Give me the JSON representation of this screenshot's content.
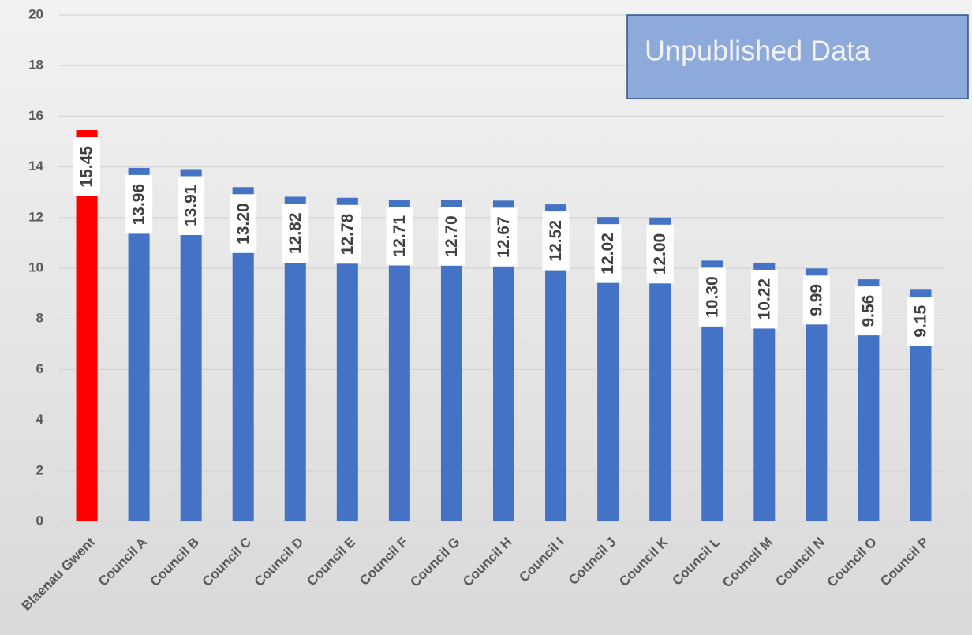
{
  "chart_data": {
    "type": "bar",
    "categories": [
      "Blaenau Gwent",
      "Council A",
      "Council B",
      "Council C",
      "Council D",
      "Council E",
      "Council F",
      "Council G",
      "Council H",
      "Council I",
      "Council J",
      "Council K",
      "Council L",
      "Council M",
      "Council N",
      "Council O",
      "Council P"
    ],
    "values": [
      15.45,
      13.96,
      13.91,
      13.2,
      12.82,
      12.78,
      12.71,
      12.7,
      12.67,
      12.52,
      12.02,
      12.0,
      10.3,
      10.22,
      9.99,
      9.56,
      9.15
    ],
    "value_labels": [
      "15.45",
      "13.96",
      "13.91",
      "13.20",
      "12.82",
      "12.78",
      "12.71",
      "12.70",
      "12.67",
      "12.52",
      "12.02",
      "12.00",
      "10.30",
      "10.22",
      "9.99",
      "9.56",
      "9.15"
    ],
    "colors": [
      "#ff0000",
      "#4472c4",
      "#4472c4",
      "#4472c4",
      "#4472c4",
      "#4472c4",
      "#4472c4",
      "#4472c4",
      "#4472c4",
      "#4472c4",
      "#4472c4",
      "#4472c4",
      "#4472c4",
      "#4472c4",
      "#4472c4",
      "#4472c4",
      "#4472c4"
    ],
    "ylim": [
      0,
      20
    ],
    "yticks": [
      0,
      2,
      4,
      6,
      8,
      10,
      12,
      14,
      16,
      18,
      20
    ],
    "grid": true,
    "annotation": "Unpublished Data"
  }
}
